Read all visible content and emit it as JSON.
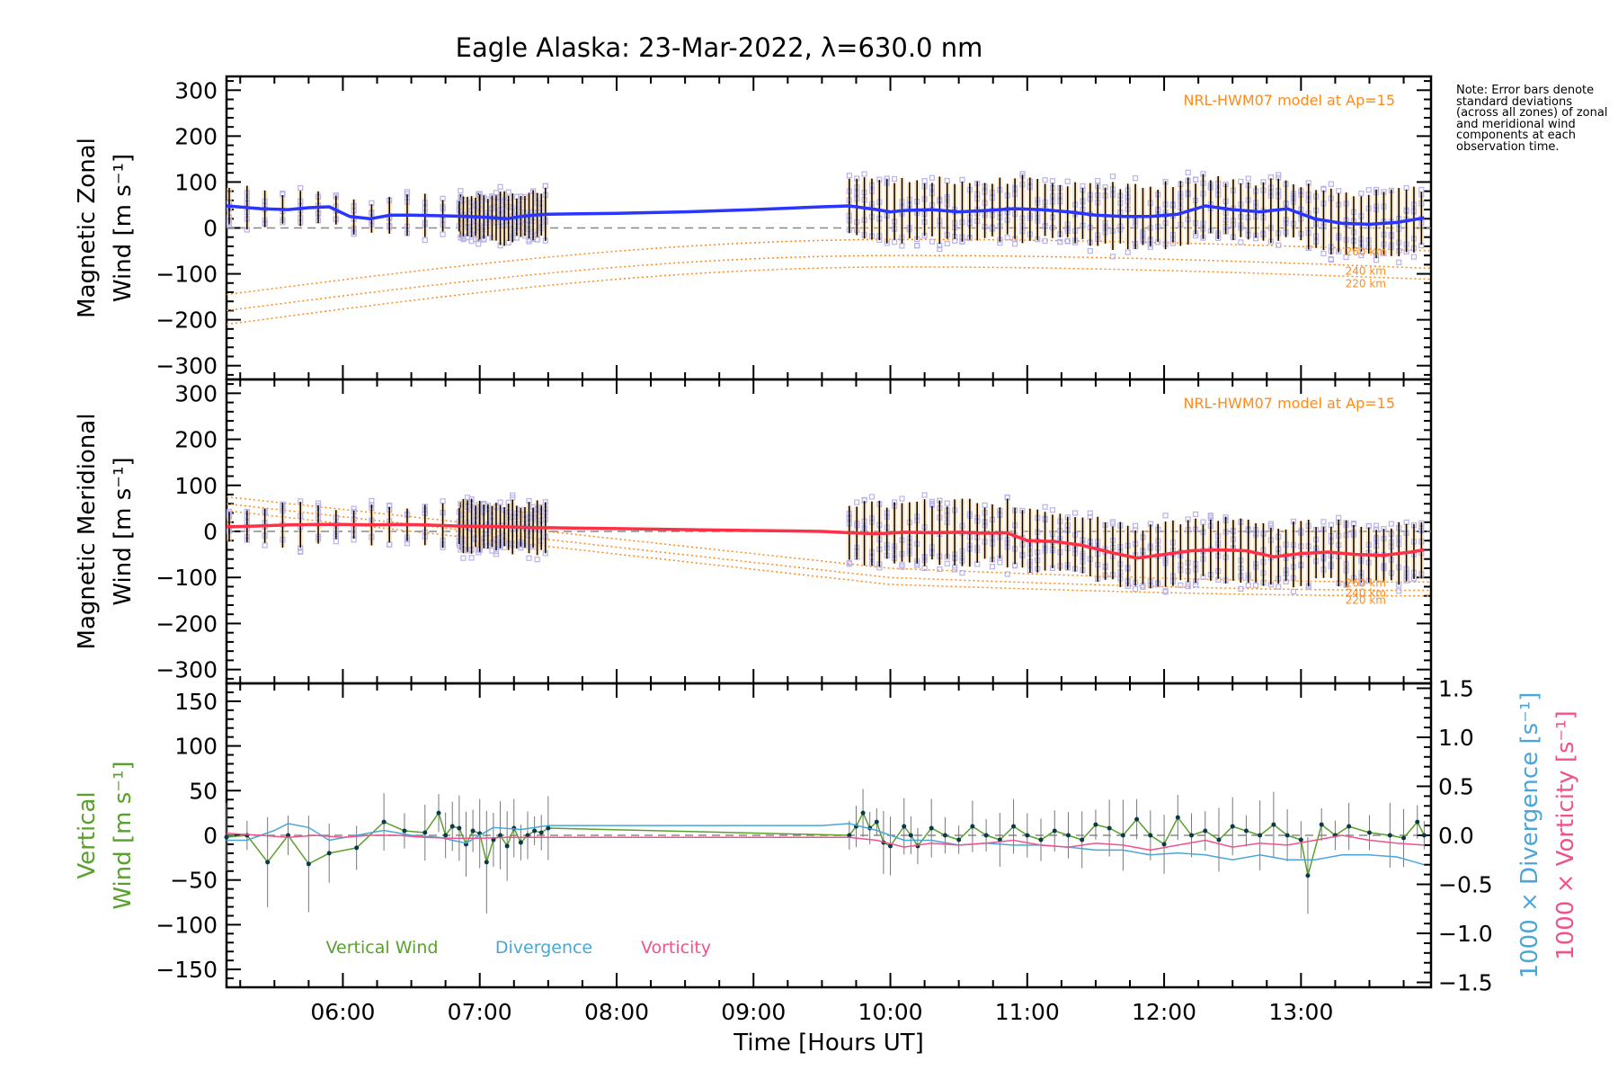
{
  "title": "Eagle Alaska: 23-Mar-2022, λ=630.0 nm",
  "note": "Note: Error bars denote standard deviations (across all zones) of zonal and meridional wind components at each observation time.",
  "colors": {
    "zonal": "#2a35ff",
    "meridional": "#ff3045",
    "model": "#ff8a1a",
    "scatter": "#b9b3ea",
    "errorbar": "#000000",
    "errorband": "#ffd9a0",
    "vertical": "#5aa02c",
    "divergence": "#4aa6d8",
    "vorticity": "#f0528c",
    "zero": "#888888"
  },
  "chart_data": [
    {
      "id": "zonal",
      "type": "line",
      "ylabel_line1": "Magnetic Zonal",
      "ylabel_line2": "Wind [m s⁻¹]",
      "ylim": [
        -330,
        330
      ],
      "yticks": [
        300,
        200,
        100,
        0,
        -100,
        -200,
        -300
      ],
      "xlim": [
        5.15,
        13.95
      ],
      "xticks": [
        6,
        7,
        8,
        9,
        10,
        11,
        12,
        13
      ],
      "model_label": "NRL-HWM07 model at Ap=15",
      "series": {
        "x": [
          5.15,
          5.4,
          5.6,
          5.75,
          5.9,
          6.05,
          6.2,
          6.35,
          6.5,
          6.65,
          6.8,
          6.9,
          7.0,
          7.1,
          7.2,
          7.3,
          7.4,
          7.5,
          8.0,
          8.5,
          9.0,
          9.5,
          9.7,
          9.9,
          10.0,
          10.1,
          10.3,
          10.5,
          10.7,
          10.9,
          11.1,
          11.3,
          11.5,
          11.7,
          11.9,
          12.1,
          12.3,
          12.5,
          12.7,
          12.9,
          13.1,
          13.3,
          13.5,
          13.7,
          13.9
        ],
        "y": [
          48,
          42,
          40,
          44,
          46,
          25,
          20,
          28,
          28,
          27,
          26,
          25,
          24,
          22,
          20,
          25,
          28,
          30,
          32,
          35,
          40,
          46,
          48,
          40,
          35,
          38,
          40,
          35,
          38,
          42,
          40,
          35,
          28,
          25,
          25,
          30,
          48,
          40,
          35,
          42,
          20,
          10,
          8,
          12,
          22
        ]
      },
      "models": [
        {
          "name": "260 km",
          "start": -145,
          "peak": -25,
          "end": -50
        },
        {
          "name": "240 km",
          "start": -180,
          "peak": -60,
          "end": -88
        },
        {
          "name": "220 km",
          "start": -210,
          "peak": -85,
          "end": -112
        }
      ]
    },
    {
      "id": "meridional",
      "type": "line",
      "ylabel_line1": "Magnetic Meridional",
      "ylabel_line2": "Wind [m s⁻¹]",
      "ylim": [
        -330,
        330
      ],
      "yticks": [
        300,
        200,
        100,
        0,
        -100,
        -200,
        -300
      ],
      "xlim": [
        5.15,
        13.95
      ],
      "xticks": [
        6,
        7,
        8,
        9,
        10,
        11,
        12,
        13
      ],
      "model_label": "NRL-HWM07 model at Ap=15",
      "series": {
        "x": [
          5.15,
          5.4,
          5.6,
          5.8,
          6.0,
          6.2,
          6.4,
          6.6,
          6.8,
          7.0,
          7.2,
          7.4,
          7.5,
          8.0,
          8.5,
          9.0,
          9.5,
          9.7,
          9.9,
          10.1,
          10.3,
          10.5,
          10.7,
          10.85,
          11.0,
          11.2,
          11.4,
          11.6,
          11.8,
          12.0,
          12.2,
          12.4,
          12.6,
          12.8,
          13.0,
          13.2,
          13.4,
          13.6,
          13.8,
          13.9
        ],
        "y": [
          10,
          12,
          14,
          15,
          15,
          14,
          15,
          14,
          12,
          11,
          10,
          8,
          8,
          6,
          4,
          2,
          0,
          -3,
          -5,
          -2,
          -3,
          -2,
          -4,
          -3,
          -20,
          -22,
          -30,
          -45,
          -58,
          -50,
          -42,
          -40,
          -42,
          -55,
          -48,
          -45,
          -50,
          -52,
          -45,
          -40
        ]
      },
      "models": [
        {
          "name": "260 km",
          "start": 75,
          "mid": -80,
          "end": -110
        },
        {
          "name": "240 km",
          "start": 60,
          "mid": -100,
          "end": -128
        },
        {
          "name": "220 km",
          "start": 45,
          "mid": -115,
          "end": -140
        }
      ]
    },
    {
      "id": "vertical",
      "type": "line",
      "ylabel_line1": "Vertical",
      "ylabel_line2": "Wind [m s⁻¹]",
      "ylim": [
        -170,
        170
      ],
      "yticks": [
        150,
        100,
        50,
        0,
        -50,
        -100,
        -150
      ],
      "y2lim": [
        -1.55,
        1.55
      ],
      "y2ticks": [
        1.5,
        1.0,
        0.5,
        0.0,
        -0.5,
        -1.0,
        -1.5
      ],
      "y2label_div": "1000 × Divergence [s⁻¹]",
      "y2label_vort": "1000 × Vorticity [s⁻¹]",
      "xlim": [
        5.15,
        13.95
      ],
      "xticks": [
        6,
        7,
        8,
        9,
        10,
        11,
        12,
        13
      ],
      "xtick_labels": [
        "06:00",
        "07:00",
        "08:00",
        "09:00",
        "10:00",
        "11:00",
        "12:00",
        "13:00"
      ],
      "xlabel": "Time [Hours UT]",
      "legend": [
        "Vertical Wind",
        "Divergence",
        "Vorticity"
      ],
      "series": [
        {
          "name": "Vertical Wind",
          "x": [
            5.15,
            5.3,
            5.45,
            5.6,
            5.75,
            5.9,
            6.1,
            6.3,
            6.45,
            6.6,
            6.7,
            6.75,
            6.8,
            6.85,
            6.9,
            6.95,
            7.0,
            7.05,
            7.1,
            7.15,
            7.2,
            7.25,
            7.3,
            7.35,
            7.4,
            7.45,
            7.5,
            9.7,
            9.75,
            9.8,
            9.85,
            9.9,
            9.95,
            10.0,
            10.1,
            10.15,
            10.2,
            10.3,
            10.4,
            10.5,
            10.6,
            10.7,
            10.8,
            10.9,
            11.0,
            11.1,
            11.2,
            11.3,
            11.4,
            11.5,
            11.6,
            11.7,
            11.8,
            11.9,
            12.0,
            12.1,
            12.2,
            12.3,
            12.4,
            12.5,
            12.6,
            12.7,
            12.8,
            12.9,
            13.0,
            13.05,
            13.15,
            13.25,
            13.35,
            13.5,
            13.65,
            13.75,
            13.85,
            13.9
          ],
          "y": [
            -2,
            0,
            -30,
            0,
            -32,
            -20,
            -14,
            15,
            5,
            3,
            25,
            0,
            10,
            8,
            -10,
            5,
            2,
            -30,
            -5,
            0,
            -12,
            8,
            -8,
            0,
            5,
            3,
            8,
            0,
            10,
            25,
            8,
            15,
            -8,
            -12,
            10,
            0,
            -12,
            8,
            0,
            -5,
            10,
            0,
            -5,
            10,
            0,
            -5,
            5,
            0,
            -5,
            12,
            8,
            0,
            18,
            0,
            -10,
            20,
            0,
            5,
            -5,
            10,
            5,
            0,
            12,
            0,
            -5,
            -45,
            12,
            0,
            10,
            3,
            0,
            -3,
            15,
            0
          ]
        },
        {
          "name": "Divergence",
          "axis": "right",
          "x": [
            5.15,
            5.3,
            5.5,
            5.6,
            5.75,
            5.9,
            6.1,
            6.3,
            6.5,
            6.7,
            6.9,
            7.1,
            7.3,
            7.5,
            8.0,
            8.5,
            9.0,
            9.5,
            9.7,
            9.9,
            10.1,
            10.3,
            10.5,
            10.7,
            10.9,
            11.1,
            11.3,
            11.5,
            11.7,
            11.9,
            12.1,
            12.3,
            12.5,
            12.7,
            12.9,
            13.1,
            13.3,
            13.5,
            13.7,
            13.9
          ],
          "y": [
            -0.05,
            -0.05,
            0.05,
            0.12,
            0.08,
            -0.05,
            0.0,
            0.05,
            0.0,
            -0.02,
            -0.08,
            0.08,
            0.06,
            0.1,
            0.1,
            0.1,
            0.1,
            0.1,
            0.12,
            0.05,
            -0.05,
            -0.05,
            -0.1,
            -0.08,
            -0.1,
            -0.1,
            -0.12,
            -0.15,
            -0.15,
            -0.2,
            -0.18,
            -0.2,
            -0.25,
            -0.2,
            -0.25,
            -0.25,
            -0.2,
            -0.2,
            -0.22,
            -0.3
          ]
        },
        {
          "name": "Vorticity",
          "axis": "right",
          "x": [
            5.15,
            5.4,
            5.6,
            5.8,
            6.0,
            6.2,
            6.4,
            6.6,
            6.8,
            7.0,
            7.2,
            7.4,
            7.5,
            8.0,
            8.5,
            9.0,
            9.5,
            9.7,
            9.9,
            10.1,
            10.3,
            10.5,
            10.7,
            10.9,
            11.1,
            11.3,
            11.5,
            11.7,
            11.9,
            12.1,
            12.3,
            12.5,
            12.7,
            12.9,
            13.1,
            13.3,
            13.5,
            13.7,
            13.9
          ],
          "y": [
            0.02,
            0.0,
            -0.02,
            0.0,
            -0.02,
            0.0,
            0.0,
            -0.02,
            -0.03,
            -0.03,
            -0.02,
            -0.02,
            -0.02,
            -0.02,
            -0.02,
            -0.02,
            -0.02,
            -0.02,
            -0.05,
            -0.12,
            -0.08,
            -0.1,
            -0.08,
            -0.05,
            -0.1,
            -0.12,
            -0.08,
            -0.1,
            -0.15,
            -0.1,
            -0.05,
            -0.12,
            -0.08,
            -0.1,
            -0.05,
            0.0,
            -0.05,
            -0.08,
            -0.1
          ]
        }
      ]
    }
  ]
}
